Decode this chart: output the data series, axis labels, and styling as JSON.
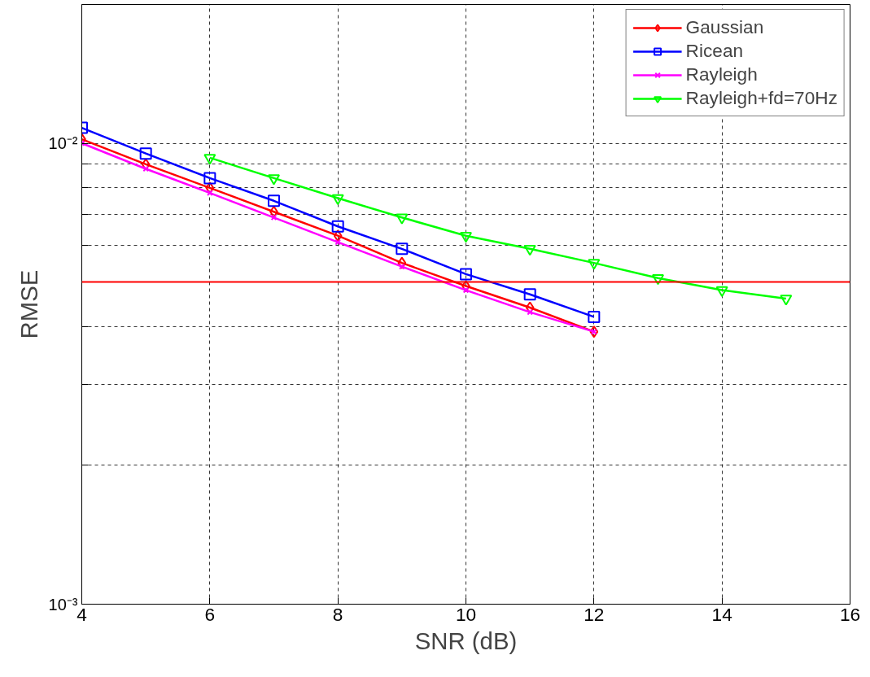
{
  "chart_data": {
    "type": "line",
    "xlabel": "SNR (dB)",
    "ylabel": "RMSE",
    "x": [
      4,
      5,
      6,
      7,
      8,
      9,
      10,
      11,
      12
    ],
    "series": [
      {
        "name": "Gaussian",
        "color": "#ff0000",
        "marker": "diamond",
        "values": [
          0.0102,
          0.009,
          0.008,
          0.0071,
          0.0063,
          0.0055,
          0.0049,
          0.0044,
          0.0039
        ]
      },
      {
        "name": "Ricean",
        "color": "#0000ff",
        "marker": "square",
        "values": [
          0.0108,
          0.0095,
          0.0084,
          0.0075,
          0.0066,
          0.0059,
          0.0052,
          0.0047,
          0.0042
        ]
      },
      {
        "name": "Rayleigh",
        "color": "#ff00ff",
        "marker": "cross",
        "values": [
          0.01,
          0.0088,
          0.0078,
          0.0069,
          0.0061,
          0.0054,
          0.0048,
          0.0043,
          0.0039
        ]
      },
      {
        "name": "Rayleigh+fd=70Hz",
        "color": "#00ff00",
        "marker": "triangle",
        "x": [
          6,
          7,
          8,
          9,
          10,
          11,
          12,
          13,
          14,
          15
        ],
        "values": [
          0.0093,
          0.0084,
          0.0076,
          0.0069,
          0.0063,
          0.0059,
          0.0055,
          0.0051,
          0.0048,
          0.0046
        ]
      }
    ],
    "xlim": [
      4,
      16
    ],
    "xticks": [
      4,
      6,
      8,
      10,
      12,
      14,
      16
    ],
    "ylim": [
      0.001,
      0.02
    ],
    "yticks": [
      {
        "value": 0.001,
        "label": "10⁻³"
      },
      {
        "value": 0.002,
        "label": null
      },
      {
        "value": 0.003,
        "label": null
      },
      {
        "value": 0.004,
        "label": null
      },
      {
        "value": 0.005,
        "label": null
      },
      {
        "value": 0.006,
        "label": null
      },
      {
        "value": 0.007,
        "label": null
      },
      {
        "value": 0.008,
        "label": null
      },
      {
        "value": 0.009,
        "label": null
      },
      {
        "value": 0.01,
        "label": "10⁻²"
      }
    ],
    "log": "y",
    "grid": true,
    "legend": "top right",
    "line_style": "solid",
    "ref_lines": [
      {
        "axis": "y",
        "value": 0.005,
        "label": null,
        "color": "#ff0000"
      }
    ]
  }
}
